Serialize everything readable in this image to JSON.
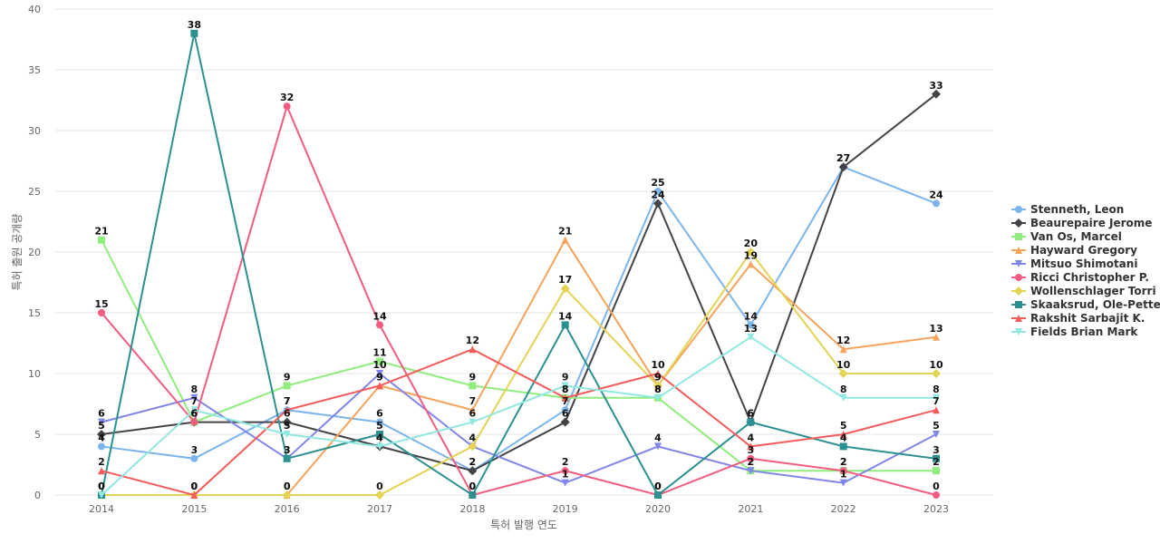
{
  "chart_data": {
    "type": "line",
    "title": "",
    "xlabel": "특허 발행 연도",
    "ylabel": "특허 출원 공개량",
    "ylim": [
      0,
      40
    ],
    "yticks": [
      0,
      5,
      10,
      15,
      20,
      25,
      30,
      35,
      40
    ],
    "grid": true,
    "legend_position": "right",
    "x": [
      "2014",
      "2015",
      "2016",
      "2017",
      "2018",
      "2019",
      "2020",
      "2021",
      "2022",
      "2023"
    ],
    "series": [
      {
        "name": "Stenneth, Leon",
        "color": "#7cb5ec",
        "marker": "circle",
        "values": [
          4,
          3,
          7,
          6,
          2,
          7,
          25,
          14,
          27,
          24
        ]
      },
      {
        "name": "Beaurepaire Jerome",
        "color": "#434348",
        "marker": "diamond",
        "values": [
          5,
          6,
          6,
          4,
          2,
          6,
          24,
          6,
          27,
          33
        ]
      },
      {
        "name": "Van Os, Marcel",
        "color": "#90ed7d",
        "marker": "square",
        "values": [
          21,
          6,
          9,
          11,
          9,
          8,
          8,
          2,
          2,
          2
        ]
      },
      {
        "name": "Hayward Gregory",
        "color": "#f7a35c",
        "marker": "triangle",
        "values": [
          0,
          0,
          0,
          9,
          7,
          21,
          9,
          19,
          12,
          13
        ]
      },
      {
        "name": "Mitsuo Shimotani",
        "color": "#8085e9",
        "marker": "triangle-down",
        "values": [
          6,
          8,
          3,
          10,
          4,
          1,
          4,
          2,
          1,
          5
        ]
      },
      {
        "name": "Ricci Christopher P.",
        "color": "#f15c80",
        "marker": "circle",
        "values": [
          15,
          6,
          32,
          14,
          0,
          2,
          0,
          3,
          2,
          0
        ]
      },
      {
        "name": "Wollenschlager Torri",
        "color": "#e4d354",
        "marker": "diamond",
        "values": [
          0,
          0,
          0,
          0,
          4,
          17,
          9,
          20,
          10,
          10
        ]
      },
      {
        "name": "Skaaksrud, Ole-Petter",
        "color": "#2b908f",
        "marker": "square",
        "values": [
          0,
          38,
          3,
          5,
          0,
          14,
          0,
          6,
          4,
          3
        ]
      },
      {
        "name": "Rakshit Sarbajit K.",
        "color": "#f45b5b",
        "marker": "triangle",
        "values": [
          2,
          0,
          7,
          9,
          12,
          8,
          10,
          4,
          5,
          7
        ]
      },
      {
        "name": "Fields Brian Mark",
        "color": "#91e8e1",
        "marker": "triangle-down",
        "values": [
          0,
          7,
          5,
          4,
          6,
          9,
          8,
          13,
          8,
          8
        ]
      }
    ]
  }
}
